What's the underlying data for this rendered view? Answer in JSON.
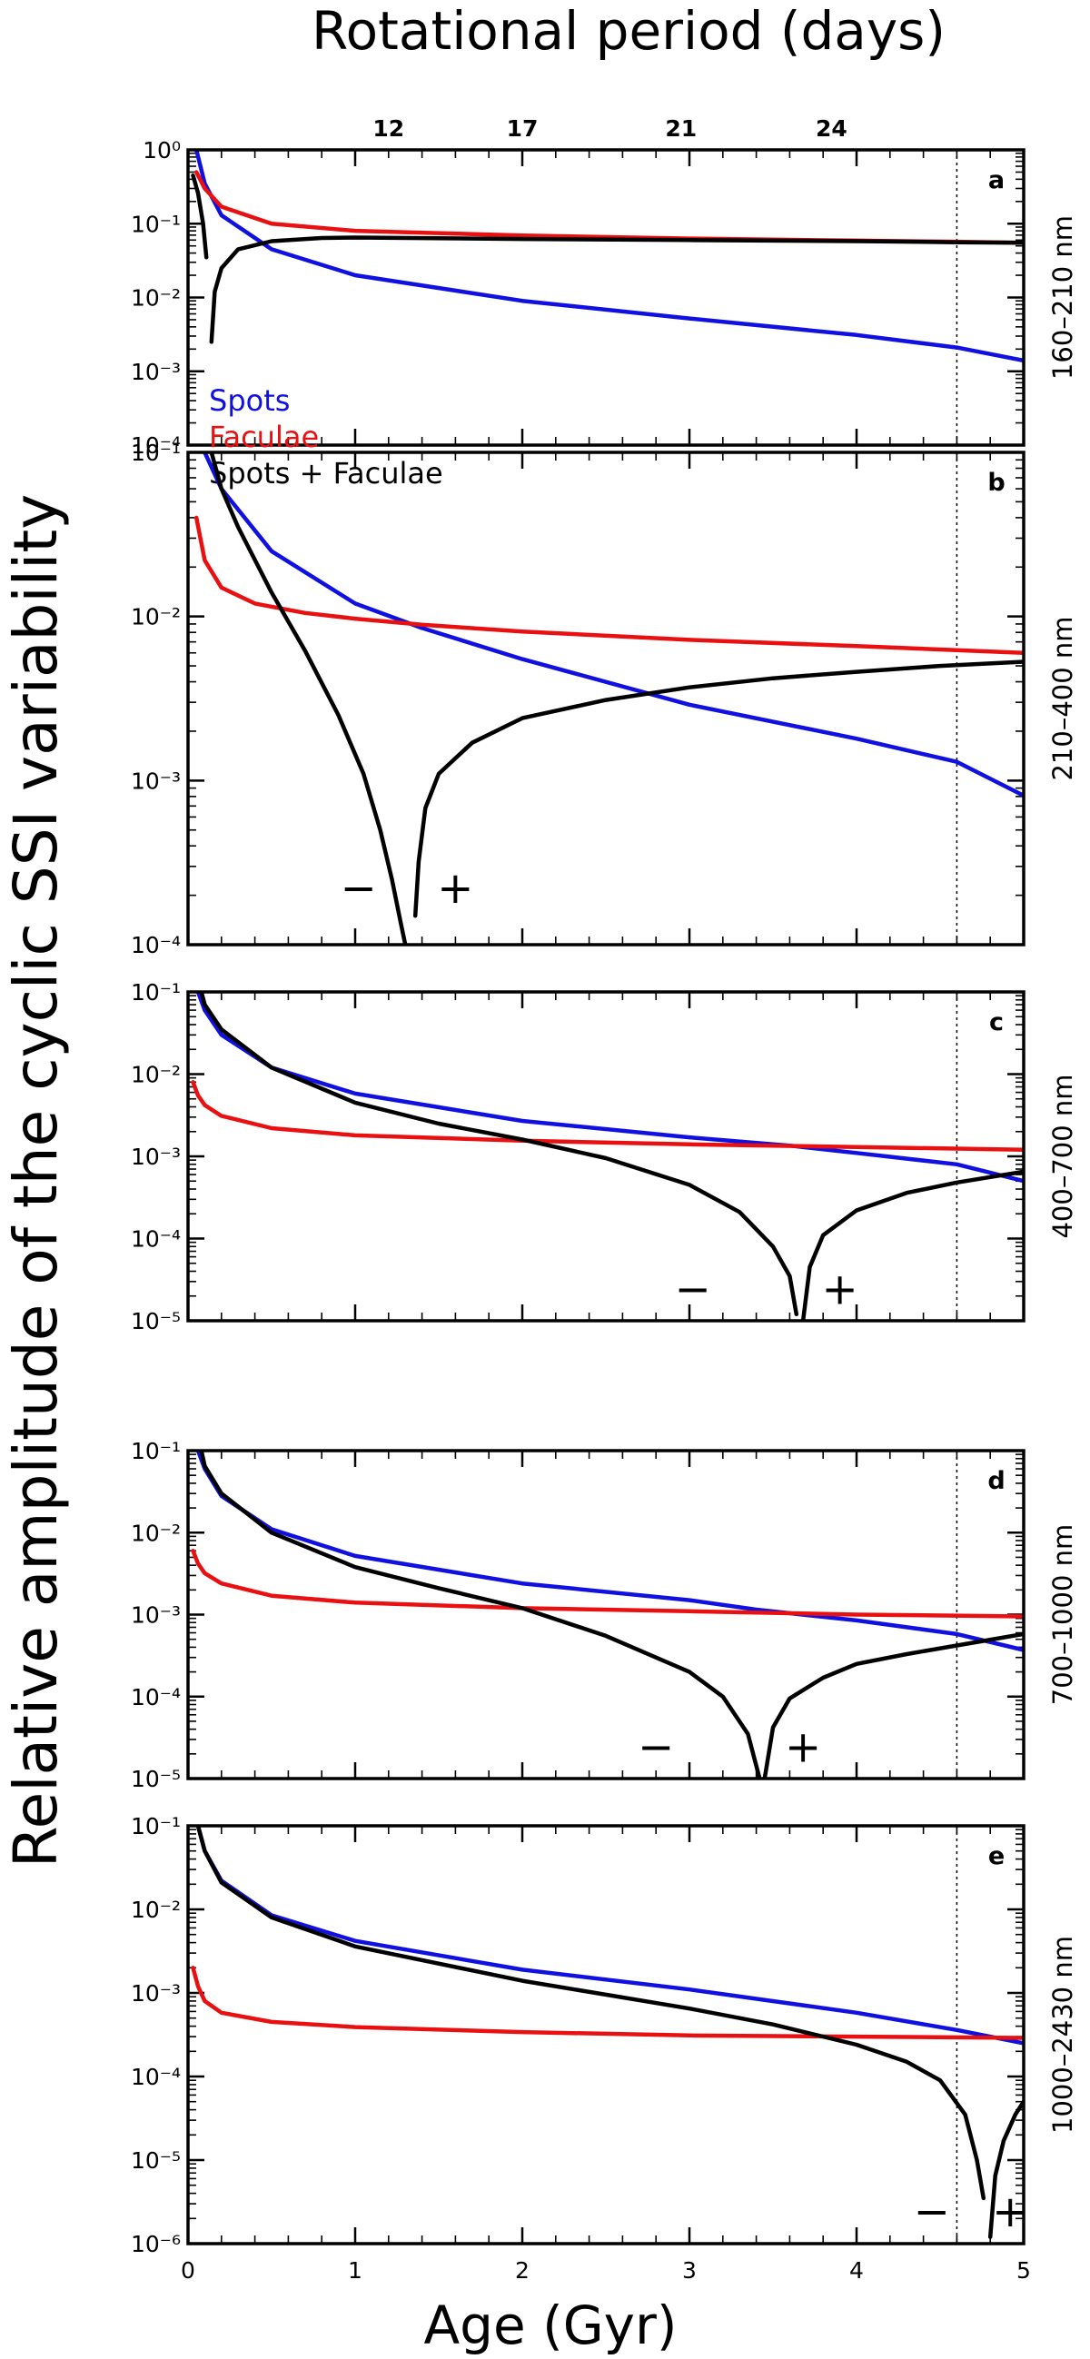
{
  "chart_data": {
    "type": "line",
    "title": "Rotational period (days)",
    "ylabel": "Relative amplitude of the cyclic SSI variability",
    "xlabel": "Age (Gyr)",
    "x_ticks": [
      "0",
      "1",
      "2",
      "3",
      "4",
      "5"
    ],
    "xlim": [
      0,
      5
    ],
    "top_axis": {
      "labels": [
        "12",
        "17",
        "21",
        "24"
      ],
      "ages": [
        1.2,
        2.0,
        2.95,
        3.85
      ]
    },
    "sun_age_line": 4.6,
    "legend": [
      {
        "name": "Spots",
        "color": "#1010e0"
      },
      {
        "name": "Faculae",
        "color": "#e81010"
      },
      {
        "name": "Spots + Faculae",
        "color": "#000000"
      }
    ],
    "panels": [
      {
        "label": "a",
        "band": "160–210 nm",
        "ylim_exp": [
          -4,
          0
        ],
        "tick_labels": [
          "10⁻⁴",
          "10⁻³",
          "10⁻²",
          "10⁻¹",
          "10⁰"
        ],
        "signs": [],
        "series": [
          {
            "name": "Spots",
            "color": "#1010e0",
            "x": [
              0.05,
              0.1,
              0.2,
              0.5,
              1,
              2,
              3,
              4,
              4.6,
              5
            ],
            "y": [
              1.0,
              0.35,
              0.13,
              0.045,
              0.02,
              0.009,
              0.0052,
              0.0031,
              0.0021,
              0.0014
            ]
          },
          {
            "name": "Faculae",
            "color": "#e81010",
            "x": [
              0.05,
              0.1,
              0.2,
              0.5,
              1,
              2,
              3,
              4,
              4.6,
              5
            ],
            "y": [
              0.5,
              0.3,
              0.17,
              0.1,
              0.08,
              0.069,
              0.063,
              0.059,
              0.057,
              0.055
            ]
          },
          {
            "name": "Spots + Faculae",
            "color": "#000000",
            "x": [
              0.03,
              0.06,
              0.09,
              0.11
            ],
            "y": [
              0.45,
              0.26,
              0.1,
              0.035
            ]
          },
          {
            "name": "Spots + Faculae",
            "color": "#000000",
            "x": [
              0.14,
              0.16,
              0.2,
              0.3,
              0.5,
              0.8,
              1,
              2,
              3,
              4,
              4.6,
              5
            ],
            "y": [
              0.0025,
              0.012,
              0.025,
              0.045,
              0.058,
              0.064,
              0.065,
              0.062,
              0.06,
              0.058,
              0.056,
              0.055
            ]
          }
        ]
      },
      {
        "label": "b",
        "band": "210–400 nm",
        "ylim_exp": [
          -4,
          -1
        ],
        "tick_labels": [
          "10⁻⁴",
          "10⁻³",
          "10⁻²",
          "10⁻¹"
        ],
        "signs": [
          {
            "text": "−",
            "x": 1.02,
            "y": 0.00018
          },
          {
            "text": "+",
            "x": 1.6,
            "y": 0.00018
          }
        ],
        "series": [
          {
            "name": "Spots",
            "color": "#1010e0",
            "x": [
              0.1,
              0.2,
              0.5,
              1,
              1.4,
              2,
              3,
              4,
              4.6,
              5
            ],
            "y": [
              0.1,
              0.06,
              0.025,
              0.012,
              0.0085,
              0.0055,
              0.0029,
              0.0018,
              0.0013,
              0.00081
            ]
          },
          {
            "name": "Faculae",
            "color": "#e81010",
            "x": [
              0.05,
              0.1,
              0.2,
              0.4,
              0.7,
              1,
              1.4,
              2,
              3,
              4,
              5
            ],
            "y": [
              0.04,
              0.022,
              0.015,
              0.012,
              0.0105,
              0.0097,
              0.0089,
              0.0081,
              0.0072,
              0.0066,
              0.006
            ]
          },
          {
            "name": "Spots + Faculae",
            "color": "#000000",
            "x": [
              0.14,
              0.2,
              0.3,
              0.5,
              0.7,
              0.9,
              1.05,
              1.15,
              1.22,
              1.27,
              1.3
            ],
            "y": [
              0.1,
              0.06,
              0.035,
              0.014,
              0.0062,
              0.0025,
              0.0011,
              0.0005,
              0.00025,
              0.00014,
              0.0001
            ]
          },
          {
            "name": "Spots + Faculae",
            "color": "#000000",
            "x": [
              1.36,
              1.38,
              1.42,
              1.5,
              1.7,
              2,
              2.5,
              3,
              3.5,
              4,
              4.5,
              5
            ],
            "y": [
              0.00015,
              0.00032,
              0.00068,
              0.0011,
              0.0017,
              0.0024,
              0.0031,
              0.0037,
              0.0042,
              0.0046,
              0.005,
              0.0053
            ]
          }
        ]
      },
      {
        "label": "c",
        "band": "400–700 nm",
        "ylim_exp": [
          -5,
          -1
        ],
        "tick_labels": [
          "10⁻⁵",
          "10⁻⁴",
          "10⁻³",
          "10⁻²",
          "10⁻¹"
        ],
        "signs": [
          {
            "text": "−",
            "x": 3.02,
            "y": 1.6e-05
          },
          {
            "text": "+",
            "x": 3.9,
            "y": 1.6e-05
          }
        ],
        "series": [
          {
            "name": "Spots",
            "color": "#1010e0",
            "x": [
              0.06,
              0.1,
              0.2,
              0.5,
              1,
              2,
              3,
              3.6,
              4,
              4.6,
              5
            ],
            "y": [
              0.1,
              0.06,
              0.03,
              0.012,
              0.0058,
              0.0027,
              0.0017,
              0.00135,
              0.0011,
              0.0008,
              0.0005
            ]
          },
          {
            "name": "Faculae",
            "color": "#e81010",
            "x": [
              0.03,
              0.06,
              0.1,
              0.2,
              0.5,
              1,
              2,
              3,
              4,
              5
            ],
            "y": [
              0.008,
              0.0055,
              0.0042,
              0.0031,
              0.0022,
              0.0018,
              0.00155,
              0.0014,
              0.0013,
              0.0012
            ]
          },
          {
            "name": "Spots + Faculae",
            "color": "#000000",
            "x": [
              0.08,
              0.1,
              0.2,
              0.5,
              1,
              1.5,
              2,
              2.5,
              3,
              3.3,
              3.5,
              3.6,
              3.64
            ],
            "y": [
              0.1,
              0.07,
              0.035,
              0.012,
              0.0045,
              0.0025,
              0.0016,
              0.00095,
              0.00045,
              0.00021,
              8e-05,
              3.5e-05,
              1.2e-05
            ]
          },
          {
            "name": "Spots + Faculae",
            "color": "#000000",
            "x": [
              3.68,
              3.72,
              3.8,
              4,
              4.3,
              4.6,
              5
            ],
            "y": [
              1e-05,
              4.5e-05,
              0.00011,
              0.00022,
              0.00036,
              0.00048,
              0.00065
            ]
          }
        ]
      },
      {
        "label": "d",
        "band": "700–1000 nm",
        "ylim_exp": [
          -5,
          -1
        ],
        "tick_labels": [
          "10⁻⁵",
          "10⁻⁴",
          "10⁻³",
          "10⁻²",
          "10⁻¹"
        ],
        "signs": [
          {
            "text": "−",
            "x": 2.8,
            "y": 1.6e-05
          },
          {
            "text": "+",
            "x": 3.68,
            "y": 1.6e-05
          }
        ],
        "series": [
          {
            "name": "Spots",
            "color": "#1010e0",
            "x": [
              0.06,
              0.1,
              0.2,
              0.5,
              1,
              2,
              3,
              3.4,
              4,
              4.6,
              5
            ],
            "y": [
              0.1,
              0.06,
              0.028,
              0.011,
              0.0052,
              0.0024,
              0.0015,
              0.00115,
              0.00085,
              0.00058,
              0.00037
            ]
          },
          {
            "name": "Faculae",
            "color": "#e81010",
            "x": [
              0.03,
              0.06,
              0.1,
              0.2,
              0.5,
              1,
              2,
              3,
              4,
              5
            ],
            "y": [
              0.006,
              0.0042,
              0.0032,
              0.0024,
              0.0017,
              0.0014,
              0.0012,
              0.0011,
              0.001,
              0.00095
            ]
          },
          {
            "name": "Spots + Faculae",
            "color": "#000000",
            "x": [
              0.08,
              0.1,
              0.2,
              0.5,
              1,
              1.5,
              2,
              2.5,
              3,
              3.2,
              3.35,
              3.42
            ],
            "y": [
              0.1,
              0.065,
              0.03,
              0.01,
              0.0038,
              0.0021,
              0.0012,
              0.00055,
              0.0002,
              0.0001,
              3.5e-05,
              1e-05
            ]
          },
          {
            "name": "Spots + Faculae",
            "color": "#000000",
            "x": [
              3.45,
              3.5,
              3.6,
              3.8,
              4,
              4.3,
              4.6,
              5
            ],
            "y": [
              1e-05,
              4.2e-05,
              9.5e-05,
              0.00017,
              0.00025,
              0.00033,
              0.00042,
              0.00058
            ]
          }
        ]
      },
      {
        "label": "e",
        "band": "1000–2430 nm",
        "ylim_exp": [
          -6,
          -1
        ],
        "tick_labels": [
          "10⁻⁶",
          "10⁻⁵",
          "10⁻⁴",
          "10⁻³",
          "10⁻²",
          "10⁻¹"
        ],
        "signs": [
          {
            "text": "−",
            "x": 4.45,
            "y": 1.6e-06
          },
          {
            "text": "+",
            "x": 4.92,
            "y": 1.6e-06
          }
        ],
        "series": [
          {
            "name": "Spots",
            "color": "#1010e0",
            "x": [
              0.06,
              0.1,
              0.2,
              0.5,
              1,
              2,
              3,
              4,
              4.6,
              5
            ],
            "y": [
              0.1,
              0.05,
              0.022,
              0.0085,
              0.0042,
              0.0019,
              0.0011,
              0.00058,
              0.00036,
              0.00025
            ]
          },
          {
            "name": "Faculae",
            "color": "#e81010",
            "x": [
              0.03,
              0.06,
              0.1,
              0.2,
              0.5,
              1,
              2,
              3,
              4,
              5
            ],
            "y": [
              0.002,
              0.0012,
              0.0008,
              0.00058,
              0.00045,
              0.00039,
              0.00034,
              0.00031,
              0.0003,
              0.00029
            ]
          },
          {
            "name": "Spots + Faculae",
            "color": "#000000",
            "x": [
              0.06,
              0.1,
              0.2,
              0.5,
              1,
              2,
              3,
              3.5,
              4,
              4.3,
              4.5,
              4.65,
              4.72,
              4.76
            ],
            "y": [
              0.1,
              0.05,
              0.021,
              0.008,
              0.0036,
              0.0014,
              0.00065,
              0.00042,
              0.00024,
              0.00015,
              9e-05,
              3.5e-05,
              1e-05,
              3.5e-06
            ]
          },
          {
            "name": "Spots + Faculae",
            "color": "#000000",
            "x": [
              4.8,
              4.83,
              4.88,
              4.95,
              5
            ],
            "y": [
              1.2e-06,
              6.5e-06,
              1.7e-05,
              3.5e-05,
              5e-05
            ]
          }
        ]
      }
    ]
  }
}
